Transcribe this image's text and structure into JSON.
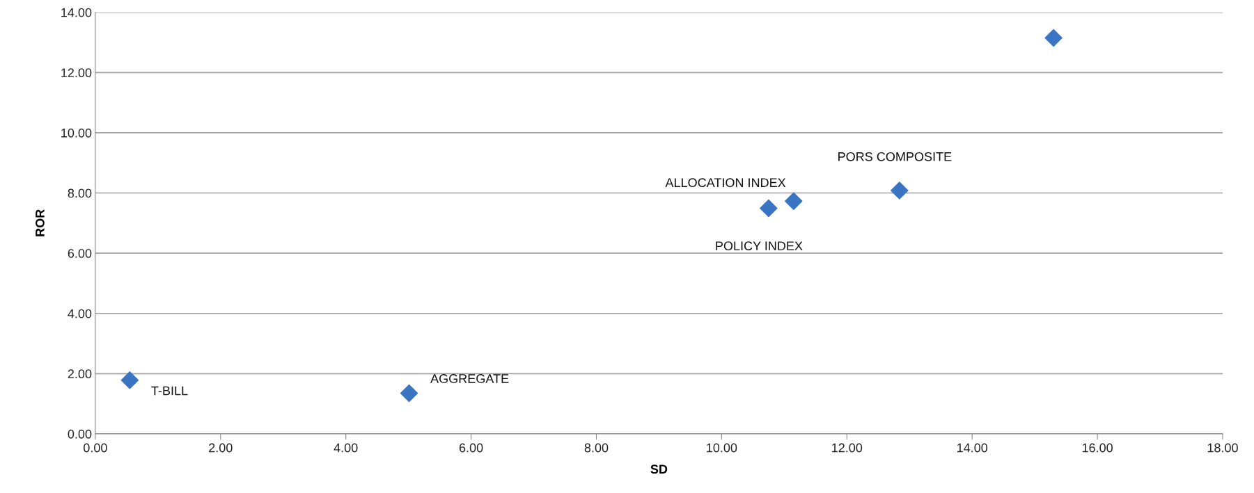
{
  "chart_data": {
    "type": "scatter",
    "xlabel": "SD",
    "ylabel": "ROR",
    "x": [
      0.55,
      5.01,
      10.75,
      11.15,
      12.84,
      15.3
    ],
    "series": [
      {
        "color": "#3a75c4",
        "values": [
          1.78,
          1.35,
          7.49,
          7.73,
          8.08,
          13.15
        ]
      }
    ],
    "marker": "diamond",
    "grid": "y",
    "xlim": [
      0,
      18
    ],
    "xticks": [
      {
        "value": 0,
        "label": "0.00"
      },
      {
        "value": 2,
        "label": "2.00"
      },
      {
        "value": 4,
        "label": "4.00"
      },
      {
        "value": 6,
        "label": "6.00"
      },
      {
        "value": 8,
        "label": "8.00"
      },
      {
        "value": 10,
        "label": "10.00"
      },
      {
        "value": 12,
        "label": "12.00"
      },
      {
        "value": 14,
        "label": "14.00"
      },
      {
        "value": 16,
        "label": "16.00"
      },
      {
        "value": 18,
        "label": "18.00"
      }
    ],
    "ylim": [
      0,
      14
    ],
    "yticks": [
      {
        "value": 0,
        "label": "0.00"
      },
      {
        "value": 2,
        "label": "2.00"
      },
      {
        "value": 4,
        "label": "4.00"
      },
      {
        "value": 6,
        "label": "6.00"
      },
      {
        "value": 8,
        "label": "8.00"
      },
      {
        "value": 10,
        "label": "10.00"
      },
      {
        "value": 12,
        "label": "12.00"
      },
      {
        "value": 14,
        "label": "14.00"
      }
    ],
    "annotations": [
      {
        "text": "T-BILL",
        "x": 0.55,
        "y": 1.78
      },
      {
        "text": "AGGREGATE",
        "x": 5.01,
        "y": 1.35
      },
      {
        "text": "POLICY INDEX",
        "x": 10.75,
        "y": 7.49
      },
      {
        "text": "ALLOCATION INDEX",
        "x": 11.15,
        "y": 7.73
      },
      {
        "text": "PORS COMPOSITE",
        "x": 12.84,
        "y": 8.08
      }
    ]
  }
}
